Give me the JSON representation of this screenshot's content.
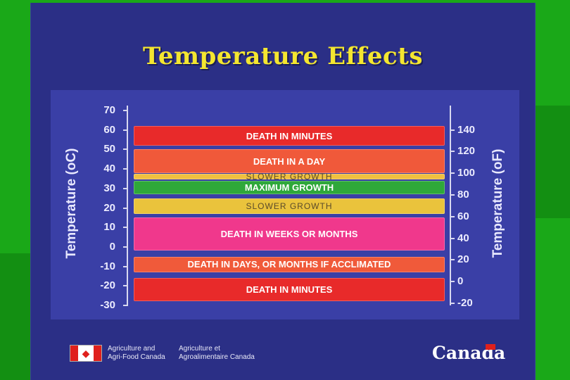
{
  "slide": {
    "title": "Temperature Effects"
  },
  "chart_data": {
    "type": "table",
    "left_axis": {
      "label": "Temperature (oC)",
      "ticks": [
        "70",
        "60",
        "50",
        "40",
        "30",
        "20",
        "10",
        "0",
        "-10",
        "-20",
        "-30"
      ],
      "range": [
        -30,
        70
      ]
    },
    "right_axis": {
      "label": "Temperature (oF)",
      "ticks": [
        "140",
        "120",
        "100",
        "80",
        "60",
        "40",
        "20",
        "0",
        "-20"
      ],
      "values": [
        140,
        120,
        100,
        80,
        60,
        40,
        20,
        0,
        -20
      ]
    },
    "bands": [
      {
        "label": "DEATH IN MINUTES",
        "from": 52,
        "to": 62,
        "color": "#e82a2a"
      },
      {
        "label": "DEATH IN A DAY",
        "from": 38,
        "to": 50,
        "color": "#f0593a"
      },
      {
        "label": "SLOWER GROWTH",
        "from": 35,
        "to": 37.5,
        "color": "#f0c040"
      },
      {
        "label": "MAXIMUM GROWTH",
        "from": 27,
        "to": 34,
        "color": "#2fa83a"
      },
      {
        "label": "SLOWER GROWTH",
        "from": 17,
        "to": 25,
        "color": "#eac33c"
      },
      {
        "label": "DEATH IN WEEKS OR MONTHS",
        "from": -2,
        "to": 15,
        "color": "#f0388c"
      },
      {
        "label": "DEATH IN DAYS, OR MONTHS IF ACCLIMATED",
        "from": -13,
        "to": -5,
        "color": "#f05a3a"
      },
      {
        "label": "DEATH IN MINUTES",
        "from": -28,
        "to": -16,
        "color": "#e82a2a"
      }
    ]
  },
  "footer": {
    "dept_en_line1": "Agriculture and",
    "dept_en_line2": "Agri-Food Canada",
    "dept_fr_line1": "Agriculture et",
    "dept_fr_line2": "Agroalimentaire Canada",
    "wordmark": "Canada"
  }
}
